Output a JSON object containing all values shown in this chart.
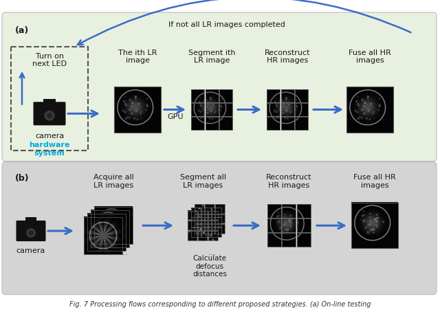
{
  "panel_a": {
    "bg_color": "#e8f0e0",
    "label": "(a)",
    "loop_text": "If not all LR images completed",
    "box_label": "Turn on\nnext LED",
    "camera_label": "camera",
    "hw_label": "hardware\nsystem",
    "steps": [
      "The ith LR\nimage",
      "Segment ith\nLR image",
      "Reconstruct\nHR images",
      "Fuse all HR\nimages"
    ],
    "gpu_label": "GPU"
  },
  "panel_b": {
    "bg_color": "#d4d4d4",
    "label": "(b)",
    "camera_label": "camera",
    "steps": [
      "Acquire all\nLR images",
      "Segment all\nLR images",
      "Reconstruct\nHR images",
      "Fuse all HR\nimages"
    ],
    "extra_label": "Calculate\ndefocus\ndistances"
  },
  "arrow_color": "#3a6bc8",
  "dashed_box_color": "#555555",
  "hw_text_color": "#00aadd",
  "text_color": "#1a1a1a",
  "fig_caption": "Fig. 7 Processing flows corresponding to different proposed strategies. (a) On-line testing"
}
